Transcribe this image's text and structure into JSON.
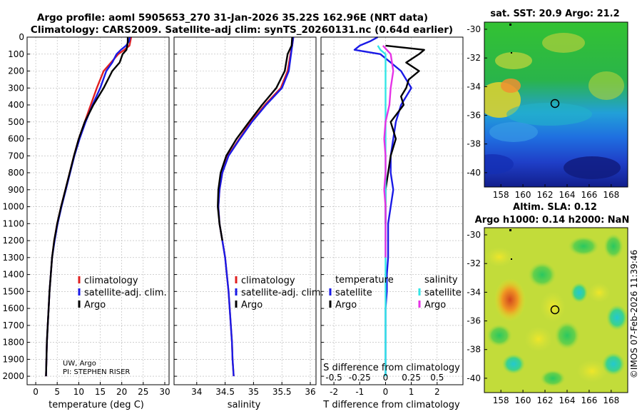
{
  "header": {
    "title_line1": "Argo profile: aoml 5905653_270 31-Jan-2026 35.22S 162.96E (NRT data)",
    "title_line2": "Climatology: CARS2009. Satellite-adj clim: synTS_20260131.nc (0.64d earlier)"
  },
  "colors": {
    "climatology": "#e02020",
    "satellite_adj": "#1a1ae6",
    "argo": "#000000",
    "sat_s": "#33e6e6",
    "argo_s": "#e633e6",
    "grid": "#b4b4b4"
  },
  "chart_data": [
    {
      "id": "temperature",
      "type": "line",
      "xlabel": "temperature (deg C)",
      "xlim": [
        -2,
        31
      ],
      "xticks": [
        0,
        5,
        10,
        15,
        20,
        25,
        30
      ],
      "ylim": [
        2050,
        0
      ],
      "yticks": [
        0,
        100,
        200,
        300,
        400,
        500,
        600,
        700,
        800,
        900,
        1000,
        1100,
        1200,
        1300,
        1400,
        1500,
        1600,
        1700,
        1800,
        1900,
        2000
      ],
      "legend": [
        "climatology",
        "satellite-adj. clim.",
        "Argo"
      ],
      "annotation_lines": [
        "UW, Argo",
        "PI: STEPHEN RISER"
      ],
      "series": [
        {
          "name": "climatology",
          "color": "#e02020",
          "points": [
            [
              22.2,
              0
            ],
            [
              22,
              25
            ],
            [
              21.8,
              50
            ],
            [
              20.6,
              75
            ],
            [
              19.2,
              100
            ],
            [
              17.5,
              150
            ],
            [
              15.8,
              200
            ],
            [
              14.2,
              300
            ],
            [
              12.8,
              400
            ],
            [
              11.4,
              500
            ],
            [
              10,
              600
            ],
            [
              8.9,
              700
            ],
            [
              7.9,
              800
            ],
            [
              6.9,
              900
            ],
            [
              5.9,
              1000
            ],
            [
              5,
              1100
            ],
            [
              4.3,
              1200
            ],
            [
              3.8,
              1300
            ],
            [
              3.5,
              1400
            ],
            [
              3.2,
              1500
            ],
            [
              3,
              1600
            ],
            [
              2.8,
              1700
            ],
            [
              2.6,
              1800
            ],
            [
              2.5,
              1900
            ],
            [
              2.4,
              2000
            ]
          ]
        },
        {
          "name": "satellite-adj. clim.",
          "color": "#1a1ae6",
          "points": [
            [
              21.9,
              0
            ],
            [
              21.7,
              25
            ],
            [
              21,
              50
            ],
            [
              19.8,
              75
            ],
            [
              18.8,
              100
            ],
            [
              17.8,
              150
            ],
            [
              16.4,
              200
            ],
            [
              15,
              300
            ],
            [
              13.2,
              400
            ],
            [
              11.6,
              500
            ],
            [
              10.2,
              600
            ],
            [
              9,
              700
            ],
            [
              8,
              800
            ],
            [
              7,
              900
            ],
            [
              6,
              1000
            ],
            [
              5.1,
              1100
            ],
            [
              4.4,
              1200
            ],
            [
              3.8,
              1300
            ],
            [
              3.5,
              1400
            ],
            [
              3.2,
              1500
            ],
            [
              3,
              1600
            ],
            [
              2.8,
              1700
            ],
            [
              2.6,
              1800
            ],
            [
              2.5,
              1900
            ],
            [
              2.4,
              2000
            ]
          ]
        },
        {
          "name": "Argo",
          "color": "#000000",
          "points": [
            [
              21.4,
              0
            ],
            [
              21.4,
              25
            ],
            [
              21.3,
              50
            ],
            [
              21.1,
              75
            ],
            [
              20.2,
              100
            ],
            [
              19.5,
              150
            ],
            [
              17.8,
              200
            ],
            [
              15.8,
              300
            ],
            [
              13.4,
              400
            ],
            [
              11.4,
              500
            ],
            [
              10,
              600
            ],
            [
              8.9,
              700
            ],
            [
              7.9,
              800
            ],
            [
              6.9,
              900
            ],
            [
              5.9,
              1000
            ],
            [
              5,
              1100
            ],
            [
              4.3,
              1200
            ],
            [
              3.8,
              1300
            ],
            [
              3.5,
              1400
            ],
            [
              3.2,
              1500
            ],
            [
              3,
              1600
            ],
            [
              2.8,
              1700
            ],
            [
              2.6,
              1800
            ],
            [
              2.5,
              1900
            ],
            [
              2.4,
              2000
            ]
          ]
        }
      ]
    },
    {
      "id": "salinity",
      "type": "line",
      "xlabel": "salinity",
      "xlim": [
        33.6,
        36.1
      ],
      "xticks": [
        34,
        34.5,
        35,
        35.5,
        36
      ],
      "ylim": [
        2050,
        0
      ],
      "legend": [
        "climatology",
        "satellite-adj. clim.",
        "Argo"
      ],
      "series": [
        {
          "name": "climatology",
          "color": "#e02020",
          "points": [
            [
              35.7,
              0
            ],
            [
              35.68,
              50
            ],
            [
              35.65,
              100
            ],
            [
              35.6,
              200
            ],
            [
              35.48,
              300
            ],
            [
              35.2,
              400
            ],
            [
              34.95,
              500
            ],
            [
              34.75,
              600
            ],
            [
              34.55,
              700
            ],
            [
              34.45,
              800
            ],
            [
              34.4,
              900
            ],
            [
              34.38,
              1000
            ],
            [
              34.4,
              1100
            ],
            [
              34.45,
              1200
            ],
            [
              34.5,
              1300
            ],
            [
              34.53,
              1400
            ],
            [
              34.56,
              1500
            ],
            [
              34.58,
              1600
            ],
            [
              34.6,
              1700
            ],
            [
              34.62,
              1800
            ],
            [
              34.63,
              1900
            ],
            [
              34.65,
              2000
            ]
          ]
        },
        {
          "name": "satellite-adj. clim.",
          "color": "#1a1ae6",
          "points": [
            [
              35.7,
              0
            ],
            [
              35.68,
              50
            ],
            [
              35.66,
              100
            ],
            [
              35.62,
              200
            ],
            [
              35.5,
              300
            ],
            [
              35.22,
              400
            ],
            [
              34.97,
              500
            ],
            [
              34.76,
              600
            ],
            [
              34.56,
              700
            ],
            [
              34.45,
              800
            ],
            [
              34.4,
              900
            ],
            [
              34.38,
              1000
            ],
            [
              34.4,
              1100
            ],
            [
              34.45,
              1200
            ],
            [
              34.5,
              1300
            ],
            [
              34.53,
              1400
            ],
            [
              34.56,
              1500
            ],
            [
              34.58,
              1600
            ],
            [
              34.6,
              1700
            ],
            [
              34.62,
              1800
            ],
            [
              34.63,
              1900
            ],
            [
              34.65,
              2000
            ]
          ]
        },
        {
          "name": "Argo",
          "color": "#000000",
          "points": [
            [
              35.68,
              0
            ],
            [
              35.67,
              50
            ],
            [
              35.6,
              100
            ],
            [
              35.55,
              200
            ],
            [
              35.4,
              300
            ],
            [
              35.15,
              400
            ],
            [
              34.92,
              500
            ],
            [
              34.7,
              600
            ],
            [
              34.52,
              700
            ],
            [
              34.42,
              800
            ],
            [
              34.38,
              900
            ],
            [
              34.37,
              1000
            ],
            [
              34.4,
              1100
            ],
            [
              34.45,
              1200
            ]
          ]
        }
      ]
    },
    {
      "id": "difference",
      "type": "line",
      "xlabel": "T difference from climatology",
      "top_xlabel": "S difference from climatology",
      "xlim": [
        -2.5,
        3
      ],
      "xticks": [
        -2,
        -1,
        0,
        1,
        2
      ],
      "sticks_top_labels": [
        "-0.5",
        "-0.25",
        "0",
        "0.25",
        "0.5"
      ],
      "sticks_top_values": [
        -2,
        -1,
        0,
        1,
        2
      ],
      "ylim": [
        2050,
        0
      ],
      "legend_groups": [
        {
          "title": "temperature",
          "items": [
            "satellite",
            "Argo"
          ]
        },
        {
          "title": "salinity",
          "items": [
            "satellite",
            "Argo"
          ]
        }
      ],
      "series": [
        {
          "name": "T satellite",
          "color": "#1a1ae6",
          "points": [
            [
              -0.3,
              0
            ],
            [
              -0.6,
              25
            ],
            [
              -1,
              50
            ],
            [
              -1.2,
              75
            ],
            [
              -0.2,
              100
            ],
            [
              0.2,
              150
            ],
            [
              0.6,
              200
            ],
            [
              0.8,
              250
            ],
            [
              1,
              300
            ],
            [
              0.6,
              400
            ],
            [
              0.4,
              500
            ],
            [
              0.3,
              600
            ],
            [
              0.2,
              700
            ],
            [
              0.2,
              800
            ],
            [
              0.3,
              900
            ],
            [
              0.2,
              1000
            ],
            [
              0.1,
              1100
            ],
            [
              0.1,
              1200
            ],
            [
              0.1,
              1300
            ],
            [
              0.05,
              1400
            ],
            [
              0.05,
              1500
            ],
            [
              0,
              1600
            ],
            [
              0,
              1700
            ],
            [
              0,
              1800
            ],
            [
              0,
              1900
            ],
            [
              0,
              2000
            ]
          ]
        },
        {
          "name": "T Argo",
          "color": "#000000",
          "points": [
            [
              0,
              50
            ],
            [
              1.5,
              75
            ],
            [
              1.3,
              100
            ],
            [
              0.8,
              150
            ],
            [
              1.3,
              200
            ],
            [
              0.9,
              250
            ],
            [
              0.8,
              300
            ],
            [
              0.6,
              350
            ],
            [
              0.7,
              400
            ],
            [
              0.2,
              500
            ],
            [
              0.4,
              600
            ],
            [
              0.2,
              700
            ],
            [
              0.1,
              800
            ],
            [
              0,
              900
            ],
            [
              0,
              1000
            ],
            [
              0,
              1100
            ]
          ]
        },
        {
          "name": "S satellite",
          "color": "#33e6e6",
          "points": [
            [
              -0.3,
              50
            ],
            [
              -0.2,
              75
            ],
            [
              0,
              100
            ],
            [
              0,
              200
            ],
            [
              0,
              300
            ],
            [
              0,
              400
            ],
            [
              0,
              500
            ],
            [
              0,
              600
            ],
            [
              0,
              700
            ],
            [
              0,
              800
            ],
            [
              0,
              900
            ],
            [
              0,
              1000
            ],
            [
              0,
              1100
            ],
            [
              0,
              1200
            ],
            [
              0,
              1300
            ],
            [
              0,
              1400
            ],
            [
              0,
              1500
            ],
            [
              0,
              1600
            ],
            [
              0,
              1700
            ],
            [
              0,
              1800
            ],
            [
              0,
              1900
            ],
            [
              0,
              2000
            ]
          ]
        },
        {
          "name": "S Argo",
          "color": "#e633e6",
          "points": [
            [
              -0.1,
              50
            ],
            [
              0.2,
              100
            ],
            [
              0.3,
              200
            ],
            [
              0.2,
              300
            ],
            [
              0.15,
              400
            ],
            [
              0,
              500
            ],
            [
              -0.05,
              600
            ],
            [
              0,
              700
            ],
            [
              0,
              800
            ],
            [
              -0.05,
              900
            ],
            [
              0,
              1000
            ],
            [
              0,
              1100
            ],
            [
              0,
              1200
            ],
            [
              0,
              1300
            ]
          ]
        }
      ]
    },
    {
      "id": "sst_map",
      "type": "heatmap",
      "title": "sat. SST: 20.9 Argo: 21.2",
      "xticks": [
        158,
        160,
        162,
        164,
        166,
        168
      ],
      "yticks": [
        -30,
        -32,
        -34,
        -36,
        -38,
        -40
      ],
      "xlim": [
        156.5,
        169.5
      ],
      "ylim": [
        -41,
        -29.5
      ],
      "float_position": [
        162.96,
        -35.22
      ]
    },
    {
      "id": "sla_map",
      "type": "heatmap",
      "title_line1": "Altim. SLA: 0.12",
      "title_line2": "Argo h1000: 0.14 h2000: NaN",
      "xticks": [
        158,
        160,
        162,
        164,
        166,
        168
      ],
      "yticks": [
        -30,
        -32,
        -34,
        -36,
        -38,
        -40
      ],
      "xlim": [
        156.5,
        169.5
      ],
      "ylim": [
        -41,
        -29.5
      ],
      "float_position": [
        162.96,
        -35.22
      ]
    }
  ],
  "footer": {
    "credit": "©IMOS 07-Feb-2026 11:39:46"
  }
}
